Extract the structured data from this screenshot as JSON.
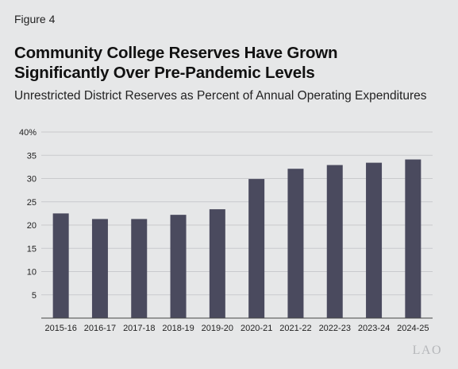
{
  "figure_label": "Figure 4",
  "title_line1": "Community College Reserves Have Grown",
  "title_line2": "Significantly Over Pre-Pandemic Levels",
  "subtitle": "Unrestricted District Reserves as Percent of Annual Operating Expenditures",
  "logo_text": "LAO",
  "colors": {
    "bar": "#4a4a5e",
    "grid": "#c9cacd",
    "axis": "#444444"
  },
  "chart_data": {
    "type": "bar",
    "title": "Community College Reserves Have Grown Significantly Over Pre-Pandemic Levels",
    "subtitle": "Unrestricted District Reserves as Percent of Annual Operating Expenditures",
    "xlabel": "",
    "ylabel": "",
    "ylim": [
      0,
      40
    ],
    "yticks": [
      5,
      10,
      15,
      20,
      25,
      30,
      35,
      40
    ],
    "ytick_labels": [
      "5",
      "10",
      "15",
      "20",
      "25",
      "30",
      "35",
      "40%"
    ],
    "grid": true,
    "categories": [
      "2015-16",
      "2016-17",
      "2017-18",
      "2018-19",
      "2019-20",
      "2020-21",
      "2021-22",
      "2022-23",
      "2023-24",
      "2024-25"
    ],
    "values": [
      22.5,
      21.3,
      21.3,
      22.2,
      23.4,
      29.9,
      32.1,
      32.9,
      33.4,
      34.1
    ]
  }
}
